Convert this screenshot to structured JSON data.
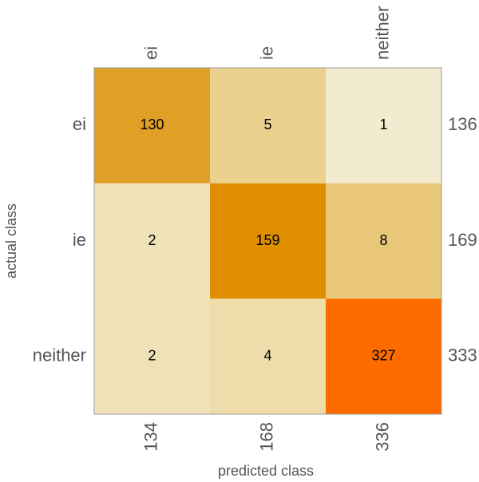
{
  "chart_data": {
    "type": "heatmap",
    "xlabel": "predicted class",
    "ylabel": "actual class",
    "x_categories": [
      "ei",
      "ie",
      "neither"
    ],
    "y_categories": [
      "ei",
      "ie",
      "neither"
    ],
    "values": [
      [
        130,
        5,
        1
      ],
      [
        2,
        159,
        8
      ],
      [
        2,
        4,
        327
      ]
    ],
    "row_totals": [
      136,
      169,
      333
    ],
    "column_totals": [
      134,
      168,
      336
    ],
    "colors": [
      [
        "#e09f26",
        "#ecd08e",
        "#f3ebcf"
      ],
      [
        "#f0e2b8",
        "#df8e00",
        "#e8c878"
      ],
      [
        "#f0e2b8",
        "#eedcaa",
        "#fe6c00"
      ]
    ]
  }
}
